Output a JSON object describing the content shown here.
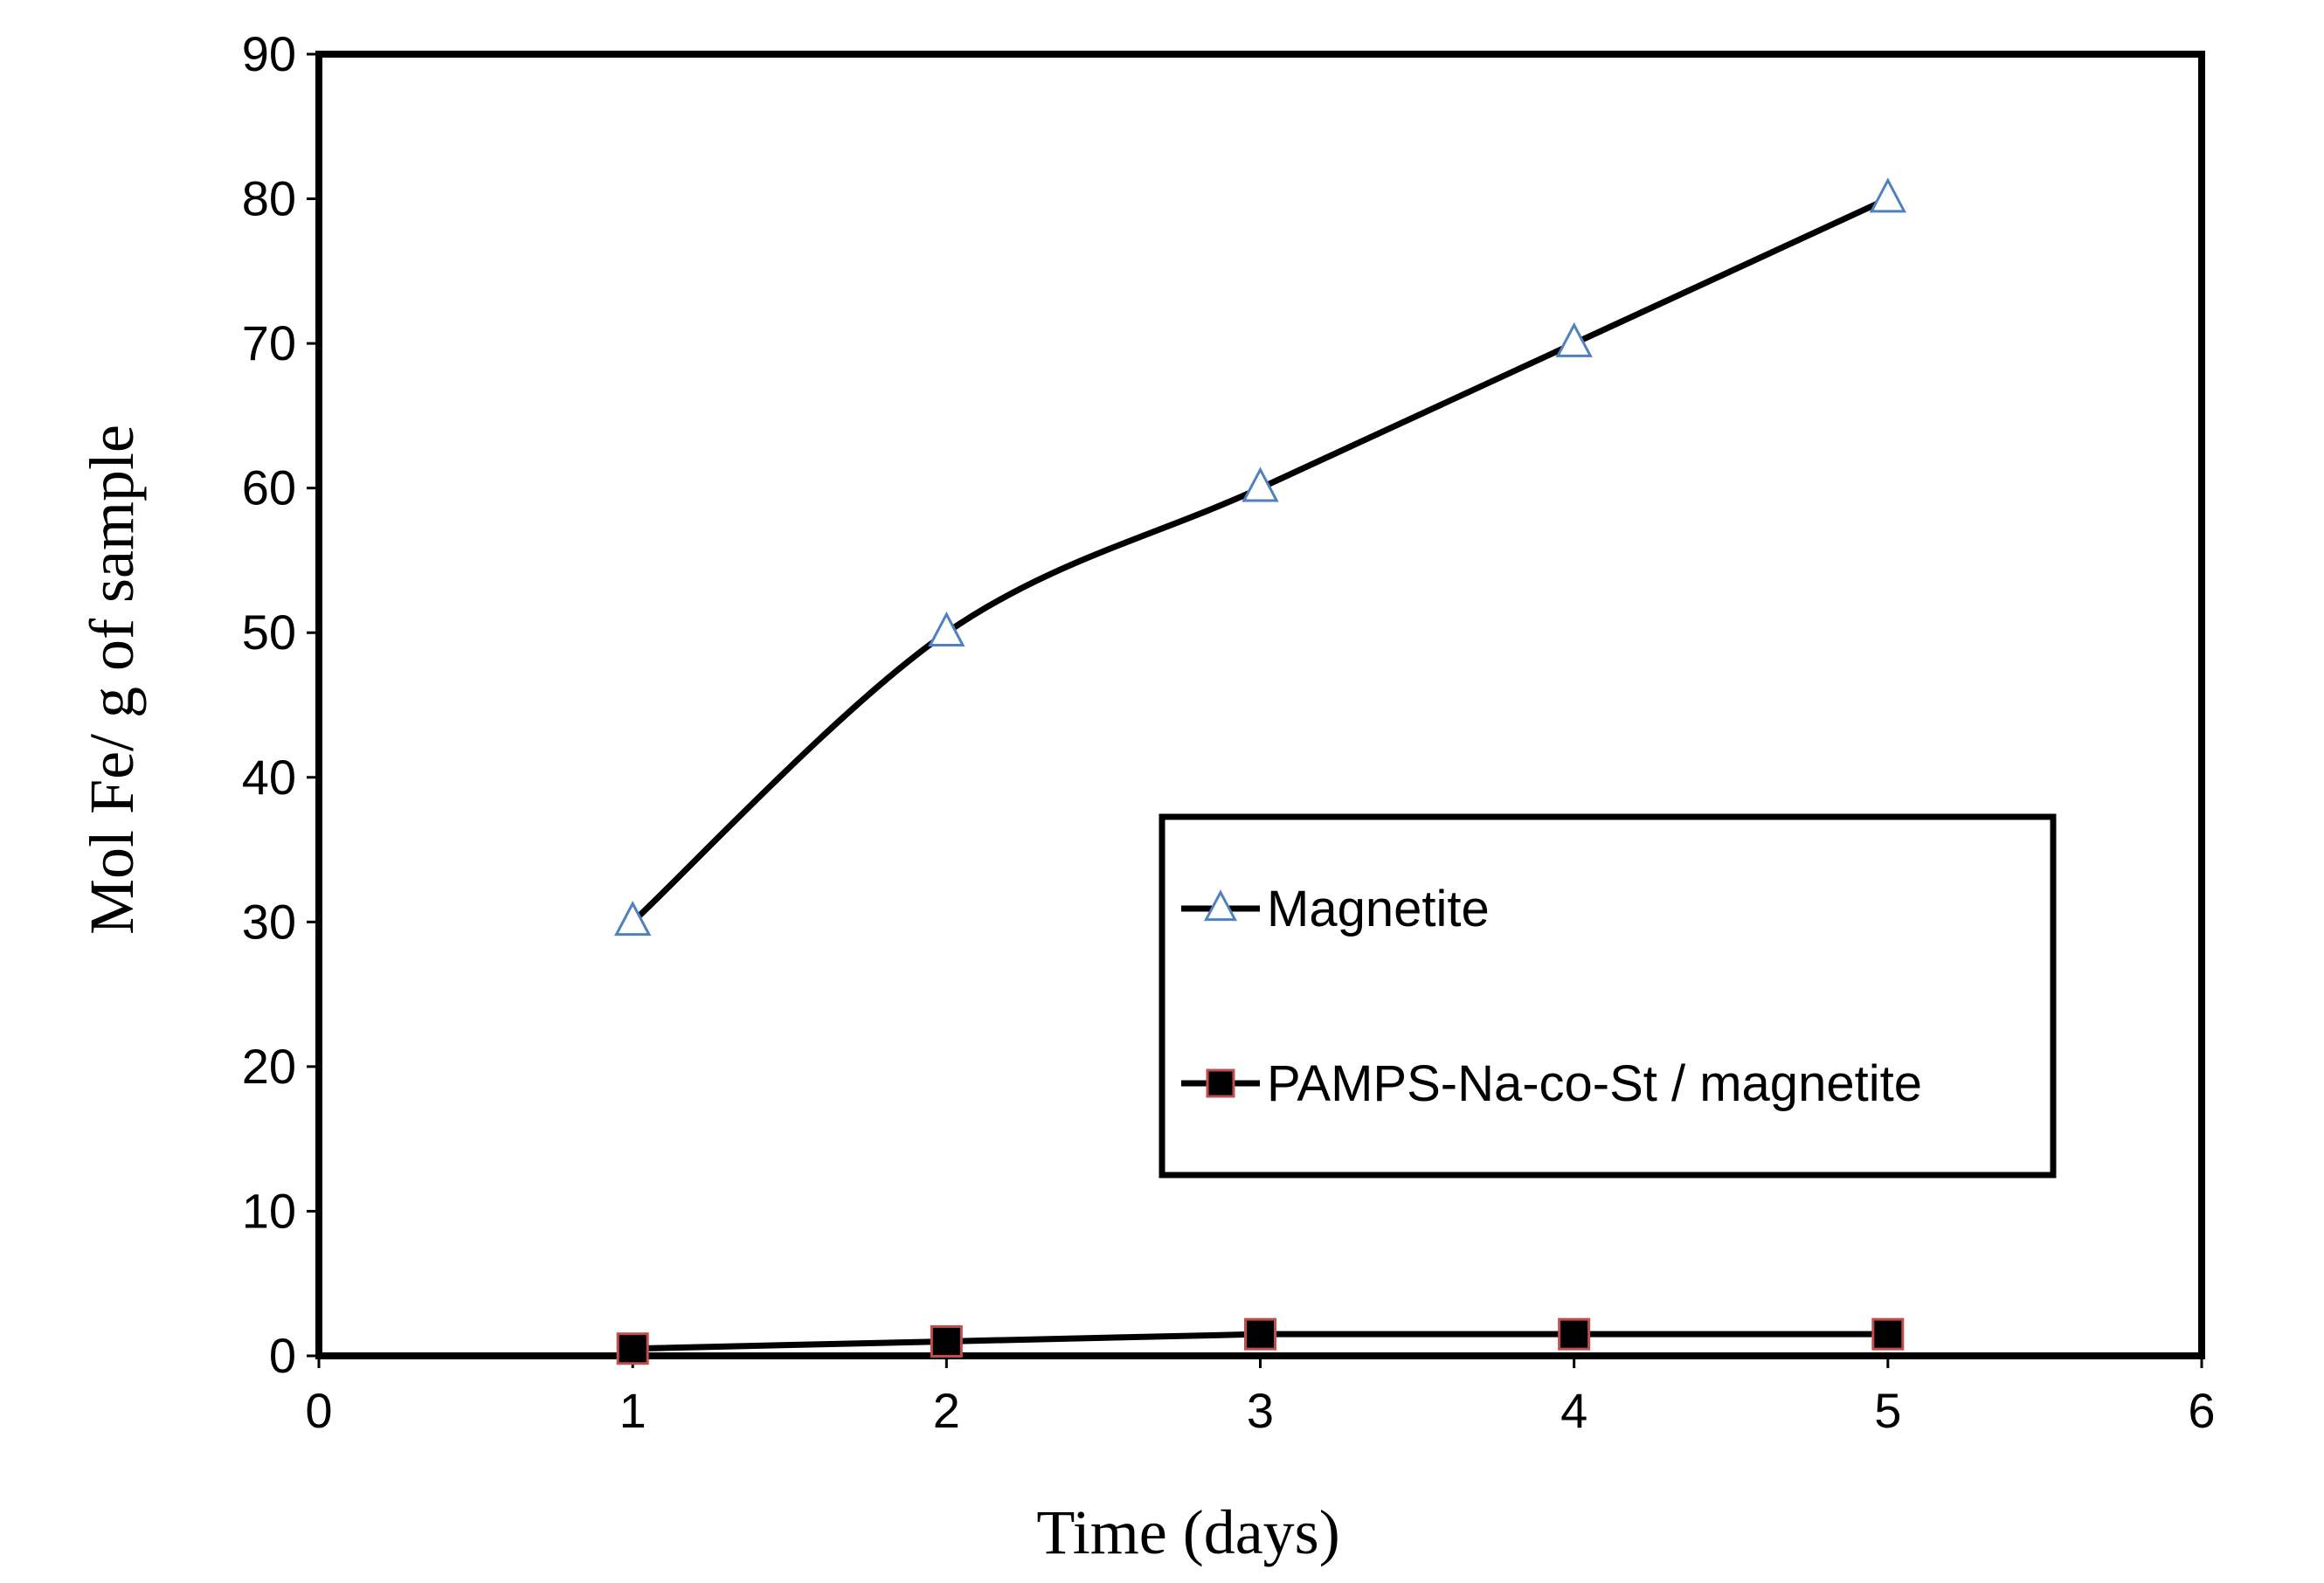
{
  "chart_data": {
    "type": "line",
    "title": "",
    "xlabel": "Time (days)",
    "ylabel": "Mol Fe/ g of sample",
    "xlim": [
      0,
      6
    ],
    "ylim": [
      0,
      90
    ],
    "x_ticks": [
      0,
      1,
      2,
      3,
      4,
      5,
      6
    ],
    "y_ticks": [
      0,
      10,
      20,
      30,
      40,
      50,
      60,
      70,
      80,
      90
    ],
    "grid": false,
    "legend_position": "center-right",
    "series": [
      {
        "name": "Magnetite",
        "marker": "triangle-open",
        "line_color": "#000000",
        "marker_color": "#4F81BD",
        "smooth": true,
        "x": [
          1,
          2,
          3,
          4,
          5
        ],
        "y": [
          30,
          50,
          60,
          70,
          80
        ]
      },
      {
        "name": "PAMPS-Na-co-St / magnetite",
        "marker": "square-filled",
        "line_color": "#000000",
        "marker_color": "#000000",
        "marker_edge_color": "#C0504D",
        "smooth": false,
        "x": [
          1,
          2,
          3,
          4,
          5
        ],
        "y": [
          0.5,
          1.0,
          1.5,
          1.5,
          1.5
        ]
      }
    ]
  }
}
